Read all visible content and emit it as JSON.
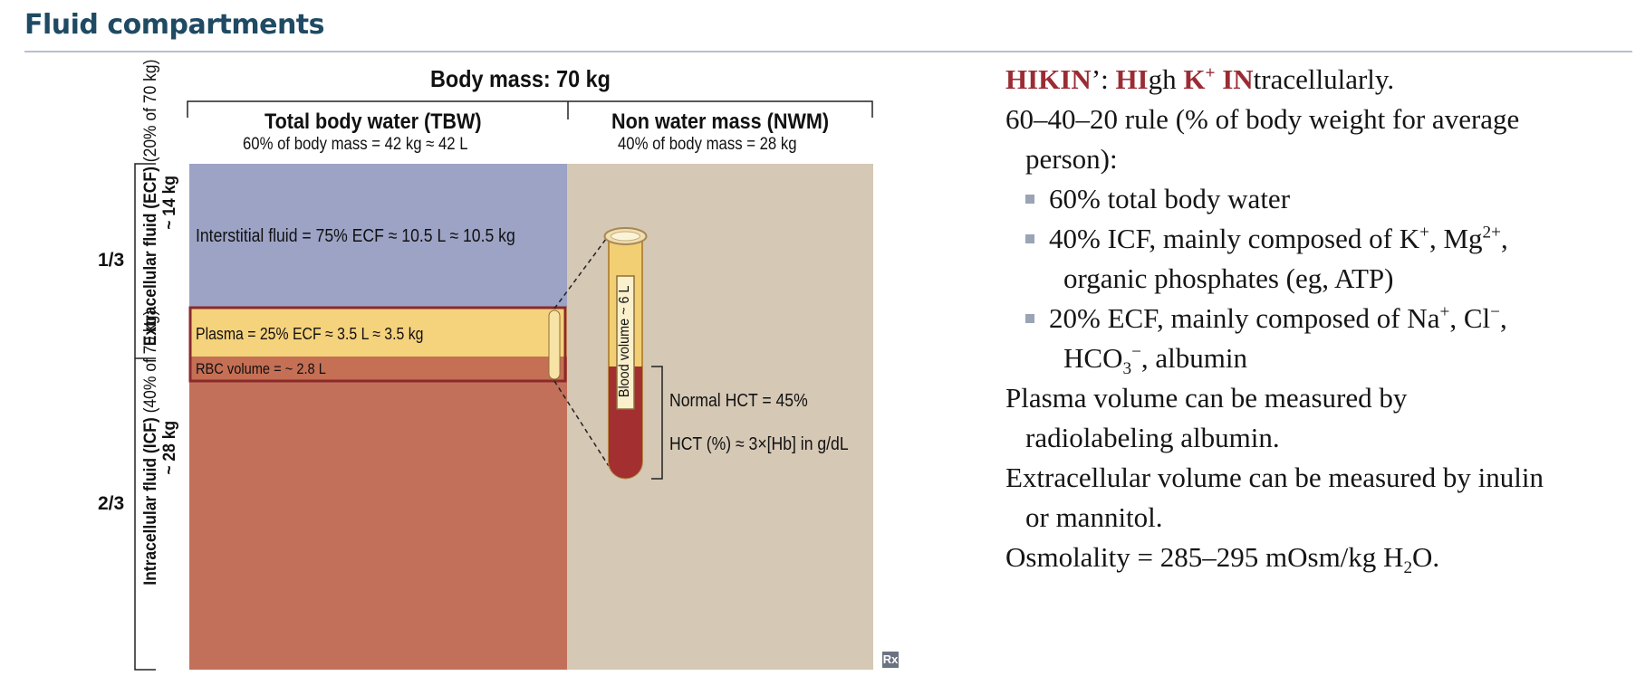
{
  "page": {
    "title": "Fluid compartments"
  },
  "diagram": {
    "body_mass": "Body mass: 70 kg",
    "tbw_title": "Total body water (TBW)",
    "tbw_sub": "60% of body mass = 42 kg ≈ 42 L",
    "nwm_title": "Non water mass (NWM)",
    "nwm_sub": "40% of body mass = 28 kg",
    "interstitial": "Interstitial fluid = 75% ECF ≈ 10.5 L ≈ 10.5 kg",
    "plasma": "Plasma = 25% ECF ≈  3.5 L ≈ 3.5 kg",
    "rbc": "RBC volume = ~ 2.8 L",
    "ecf_bold": "Extracellular fluid (ECF)",
    "ecf_normal": "(20% of 70 kg)",
    "ecf_kg": "~ 14 kg",
    "icf_bold": "Intracellular fluid (ICF)",
    "icf_normal": "(40% of 70 kg)",
    "icf_kg": "~ 28 kg",
    "frac_ecf": "1/3",
    "frac_icf": "2/3",
    "blood_volume": "Blood volume ~ 6 L",
    "normal_hct": "Normal HCT = 45%",
    "hct_formula": "HCT (%) ≈ 3×[Hb] in g/dL",
    "logo": "Rx",
    "colors": {
      "interstitial": "#9da3c5",
      "plasma": "#f5d27c",
      "rbc": "#c56f55",
      "icf": "#c3705a",
      "nwm": "#d5c8b5",
      "tube_blood": "#a32f31",
      "tube_plasma": "#f3cf74",
      "outline": "#8a2a2a"
    }
  },
  "notes": {
    "hikin": {
      "p1": "HIKIN",
      "p2": "’: ",
      "p3": "HI",
      "p4": "gh ",
      "p5": "K",
      "p6": "+",
      "p7": " IN",
      "p8": "tracellularly."
    },
    "rule_line1": "60–40–20 rule (% of body weight for average",
    "rule_line2": "person):",
    "b1": "60% total body water",
    "b2": {
      "t1": "40% ICF, mainly composed of K",
      "s1": "+",
      "t2": ", Mg",
      "s2": "2+",
      "t3": ","
    },
    "b2_cont": "organic phosphates (eg, ATP)",
    "b3": {
      "t1": "20% ECF, mainly composed of Na",
      "s1": "+",
      "t2": ", Cl",
      "s2": "−",
      "t3": ","
    },
    "b3_cont": {
      "t1": "HCO",
      "sub": "3",
      "sup": "−",
      "t2": ", albumin"
    },
    "plasma_line1": "Plasma volume can be measured by",
    "plasma_line2": "radiolabeling albumin.",
    "ecv_line1": "Extracellular volume can be measured by inulin",
    "ecv_line2": "or mannitol.",
    "osm": {
      "t1": "Osmolality = 285–295 mOsm/kg H",
      "sub": "2",
      "t2": "O."
    }
  }
}
